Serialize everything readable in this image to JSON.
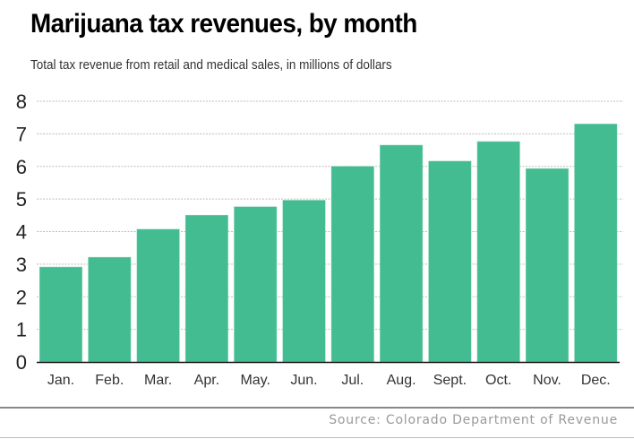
{
  "chart_data": {
    "type": "bar",
    "title": "Marijuana tax revenues, by month",
    "subtitle": "Total tax revenue from retail and medical sales, in millions of dollars",
    "xlabel": "",
    "ylabel": "",
    "categories": [
      "Jan.",
      "Feb.",
      "Mar.",
      "Apr.",
      "May.",
      "Jun.",
      "Jul.",
      "Aug.",
      "Sept.",
      "Oct.",
      "Nov.",
      "Dec."
    ],
    "values": [
      2.92,
      3.22,
      4.08,
      4.51,
      4.77,
      4.97,
      6.01,
      6.66,
      6.17,
      6.77,
      5.94,
      7.31
    ],
    "ylim": [
      0,
      8
    ],
    "yticks": [
      0,
      1,
      2,
      3,
      4,
      5,
      6,
      7,
      8
    ],
    "grid": true,
    "legend": "none",
    "bar_color": "#43bc92",
    "source": "Source: Colorado Department of Revenue"
  }
}
